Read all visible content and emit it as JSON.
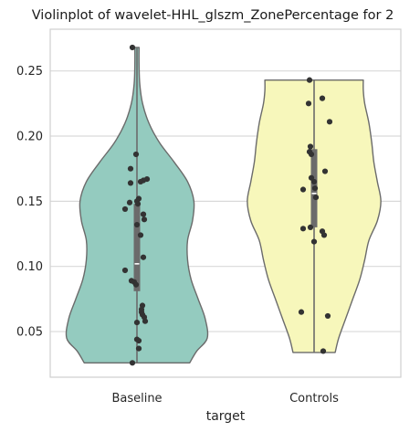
{
  "chart_data": {
    "type": "violin",
    "title": "Violinplot of wavelet-HHL_glszm_ZonePercentage for 2",
    "xlabel": "target",
    "ylabel": "",
    "categories": [
      "Baseline",
      "Controls"
    ],
    "ylim": [
      0.015,
      0.282
    ],
    "yticks": [
      0.05,
      0.1,
      0.15,
      0.2,
      0.25
    ],
    "ytick_labels": [
      "0.05",
      "0.10",
      "0.15",
      "0.20",
      "0.25"
    ],
    "grid": "horizontal",
    "colors": {
      "Baseline": "#94cbbf",
      "Controls": "#f7f7bb",
      "outline": "#6b6b6b",
      "points": "#333333",
      "box": "#6b6b6b",
      "frame": "#cfcfcf",
      "grid": "#d9d9d9"
    },
    "series": [
      {
        "name": "Baseline",
        "range": [
          0.026,
          0.268
        ],
        "quartiles": [
          0.081,
          0.102,
          0.148
        ],
        "median": 0.102,
        "density": [
          [
            0.026,
            0.75
          ],
          [
            0.035,
            0.85
          ],
          [
            0.045,
            1.0
          ],
          [
            0.06,
            0.97
          ],
          [
            0.075,
            0.87
          ],
          [
            0.09,
            0.77
          ],
          [
            0.105,
            0.72
          ],
          [
            0.12,
            0.72
          ],
          [
            0.135,
            0.79
          ],
          [
            0.15,
            0.81
          ],
          [
            0.165,
            0.72
          ],
          [
            0.18,
            0.53
          ],
          [
            0.195,
            0.32
          ],
          [
            0.21,
            0.17
          ],
          [
            0.225,
            0.08
          ],
          [
            0.24,
            0.04
          ],
          [
            0.255,
            0.03
          ],
          [
            0.268,
            0.03
          ]
        ],
        "points": [
          [
            -0.05,
            0.268
          ],
          [
            -0.05,
            0.026
          ],
          [
            -0.01,
            0.186
          ],
          [
            -0.07,
            0.175
          ],
          [
            0.11,
            0.167
          ],
          [
            0.07,
            0.166
          ],
          [
            0.04,
            0.165
          ],
          [
            -0.07,
            0.164
          ],
          [
            0.02,
            0.152
          ],
          [
            0.0,
            0.15
          ],
          [
            -0.08,
            0.149
          ],
          [
            0.01,
            0.148
          ],
          [
            -0.13,
            0.144
          ],
          [
            0.07,
            0.14
          ],
          [
            0.08,
            0.136
          ],
          [
            0.0,
            0.132
          ],
          [
            0.04,
            0.124
          ],
          [
            0.07,
            0.107
          ],
          [
            -0.13,
            0.097
          ],
          [
            -0.06,
            0.089
          ],
          [
            -0.03,
            0.088
          ],
          [
            -0.01,
            0.086
          ],
          [
            0.06,
            0.07
          ],
          [
            0.05,
            0.067
          ],
          [
            0.05,
            0.065
          ],
          [
            0.06,
            0.063
          ],
          [
            0.08,
            0.061
          ],
          [
            0.09,
            0.058
          ],
          [
            0.0,
            0.057
          ],
          [
            0.0,
            0.044
          ],
          [
            0.02,
            0.043
          ],
          [
            0.02,
            0.037
          ]
        ]
      },
      {
        "name": "Controls",
        "range": [
          0.034,
          0.243
        ],
        "quartiles": [
          0.13,
          0.156,
          0.19
        ],
        "median": 0.156,
        "density": [
          [
            0.034,
            0.3
          ],
          [
            0.045,
            0.35
          ],
          [
            0.06,
            0.45
          ],
          [
            0.075,
            0.55
          ],
          [
            0.09,
            0.65
          ],
          [
            0.105,
            0.72
          ],
          [
            0.12,
            0.78
          ],
          [
            0.135,
            0.9
          ],
          [
            0.15,
            0.95
          ],
          [
            0.165,
            0.9
          ],
          [
            0.18,
            0.85
          ],
          [
            0.195,
            0.82
          ],
          [
            0.21,
            0.78
          ],
          [
            0.225,
            0.72
          ],
          [
            0.235,
            0.7
          ],
          [
            0.243,
            0.7
          ]
        ],
        "points": [
          [
            -0.05,
            0.243
          ],
          [
            0.09,
            0.229
          ],
          [
            -0.06,
            0.225
          ],
          [
            0.17,
            0.211
          ],
          [
            -0.04,
            0.192
          ],
          [
            -0.05,
            0.188
          ],
          [
            -0.03,
            0.186
          ],
          [
            0.12,
            0.173
          ],
          [
            -0.03,
            0.168
          ],
          [
            0.0,
            0.165
          ],
          [
            0.01,
            0.16
          ],
          [
            -0.12,
            0.159
          ],
          [
            0.02,
            0.153
          ],
          [
            -0.04,
            0.13
          ],
          [
            -0.12,
            0.129
          ],
          [
            0.09,
            0.127
          ],
          [
            0.11,
            0.124
          ],
          [
            0.0,
            0.119
          ],
          [
            -0.14,
            0.065
          ],
          [
            0.15,
            0.062
          ],
          [
            0.1,
            0.035
          ]
        ]
      }
    ]
  }
}
